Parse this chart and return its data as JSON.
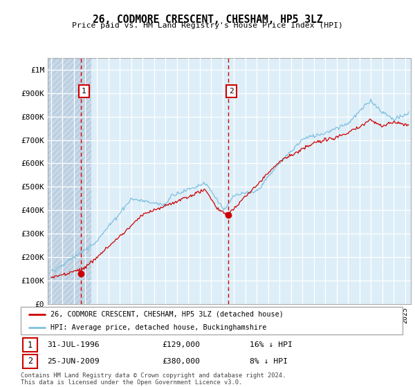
{
  "title": "26, CODMORE CRESCENT, CHESHAM, HP5 3LZ",
  "subtitle": "Price paid vs. HM Land Registry's House Price Index (HPI)",
  "ylabel_ticks": [
    "£0",
    "£100K",
    "£200K",
    "£300K",
    "£400K",
    "£500K",
    "£600K",
    "£700K",
    "£800K",
    "£900K",
    "£1M"
  ],
  "ytick_vals": [
    0,
    100000,
    200000,
    300000,
    400000,
    500000,
    600000,
    700000,
    800000,
    900000,
    1000000
  ],
  "ylim": [
    0,
    1050000
  ],
  "xlim_start": 1993.7,
  "xlim_end": 2025.5,
  "sale1_x": 1996.58,
  "sale1_y": 129000,
  "sale1_label": "1",
  "sale2_x": 2009.48,
  "sale2_y": 380000,
  "sale2_label": "2",
  "sale1_date": "31-JUL-1996",
  "sale1_price": "£129,000",
  "sale1_hpi": "16% ↓ HPI",
  "sale2_date": "25-JUN-2009",
  "sale2_price": "£380,000",
  "sale2_hpi": "8% ↓ HPI",
  "legend_line1": "26, CODMORE CRESCENT, CHESHAM, HP5 3LZ (detached house)",
  "legend_line2": "HPI: Average price, detached house, Buckinghamshire",
  "footer": "Contains HM Land Registry data © Crown copyright and database right 2024.\nThis data is licensed under the Open Government Licence v3.0.",
  "hpi_color": "#7fbfdf",
  "price_color": "#cc0000",
  "dashed_line_color": "#cc0000",
  "bg_color": "#ddeeff",
  "hatch_color": "#c8d8e8",
  "grid_color": "#ffffff"
}
